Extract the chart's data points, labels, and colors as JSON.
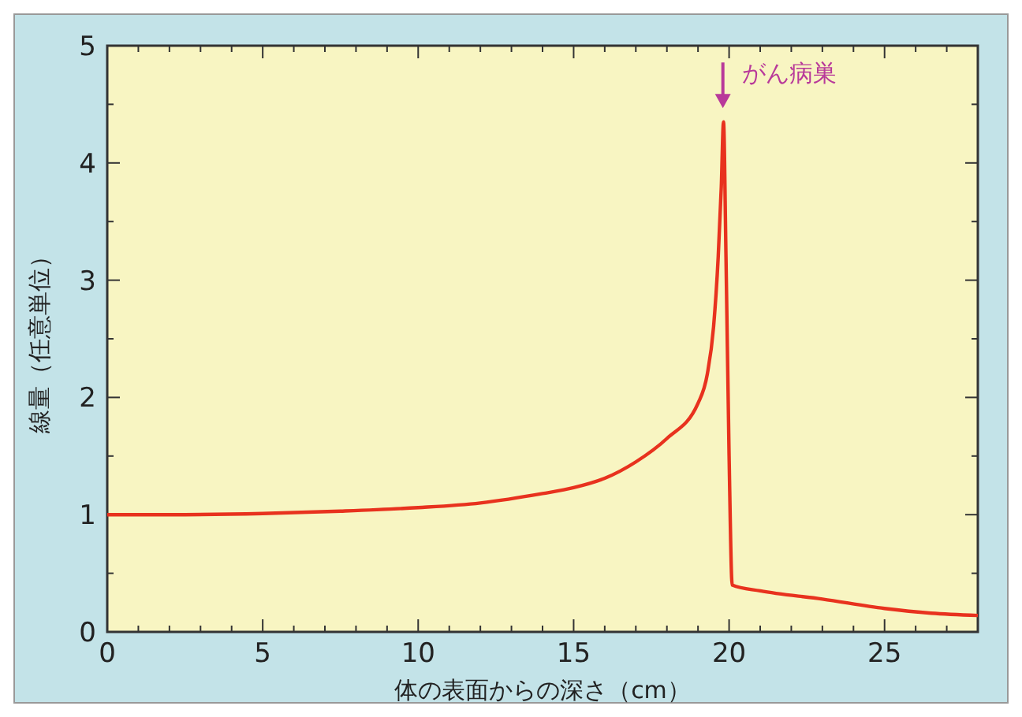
{
  "chart_data": {
    "type": "line",
    "xlabel": "体の表面からの深さ（cm）",
    "ylabel": "線量（任意単位）",
    "x": [
      0,
      2,
      5,
      7.5,
      10,
      12,
      14,
      15,
      16,
      17,
      18,
      19,
      19.3,
      19.5,
      19.65,
      19.75,
      19.82,
      19.9,
      20.0,
      20.1,
      21,
      23,
      25,
      26.5,
      28
    ],
    "series": [
      {
        "color": "#e8321e",
        "values": [
          1.0,
          1.0,
          1.01,
          1.03,
          1.06,
          1.1,
          1.18,
          1.23,
          1.31,
          1.45,
          1.65,
          1.95,
          2.2,
          2.6,
          3.2,
          3.8,
          4.35,
          3.2,
          1.5,
          0.4,
          0.35,
          0.28,
          0.2,
          0.16,
          0.14
        ]
      }
    ],
    "xlim": [
      0,
      28
    ],
    "ylim": [
      0,
      5
    ],
    "xticks": [
      0,
      {
        "value": 1,
        "label": null
      },
      {
        "value": 2,
        "label": null
      },
      {
        "value": 3,
        "label": null
      },
      {
        "value": 4,
        "label": null
      },
      5,
      {
        "value": 6,
        "label": null
      },
      {
        "value": 7,
        "label": null
      },
      {
        "value": 8,
        "label": null
      },
      {
        "value": 9,
        "label": null
      },
      10,
      {
        "value": 11,
        "label": null
      },
      {
        "value": 12,
        "label": null
      },
      {
        "value": 13,
        "label": null
      },
      {
        "value": 14,
        "label": null
      },
      15,
      {
        "value": 16,
        "label": null
      },
      {
        "value": 17,
        "label": null
      },
      {
        "value": 18,
        "label": null
      },
      {
        "value": 19,
        "label": null
      },
      20,
      {
        "value": 21,
        "label": null
      },
      {
        "value": 22,
        "label": null
      },
      {
        "value": 23,
        "label": null
      },
      {
        "value": 24,
        "label": null
      },
      25,
      {
        "value": 26,
        "label": null
      },
      {
        "value": 27,
        "label": null
      }
    ],
    "yticks": [
      0,
      {
        "value": 0.5,
        "label": null
      },
      1,
      {
        "value": 1.5,
        "label": null
      },
      2,
      {
        "value": 2.5,
        "label": null
      },
      3,
      {
        "value": 3.5,
        "label": null
      },
      4,
      {
        "value": 4.5,
        "label": null
      },
      5
    ],
    "annotations": [
      {
        "text": "がん病巣",
        "x": 19.8,
        "y": 4.4
      }
    ],
    "grid": false,
    "marker": "none",
    "line_style": "solid"
  }
}
